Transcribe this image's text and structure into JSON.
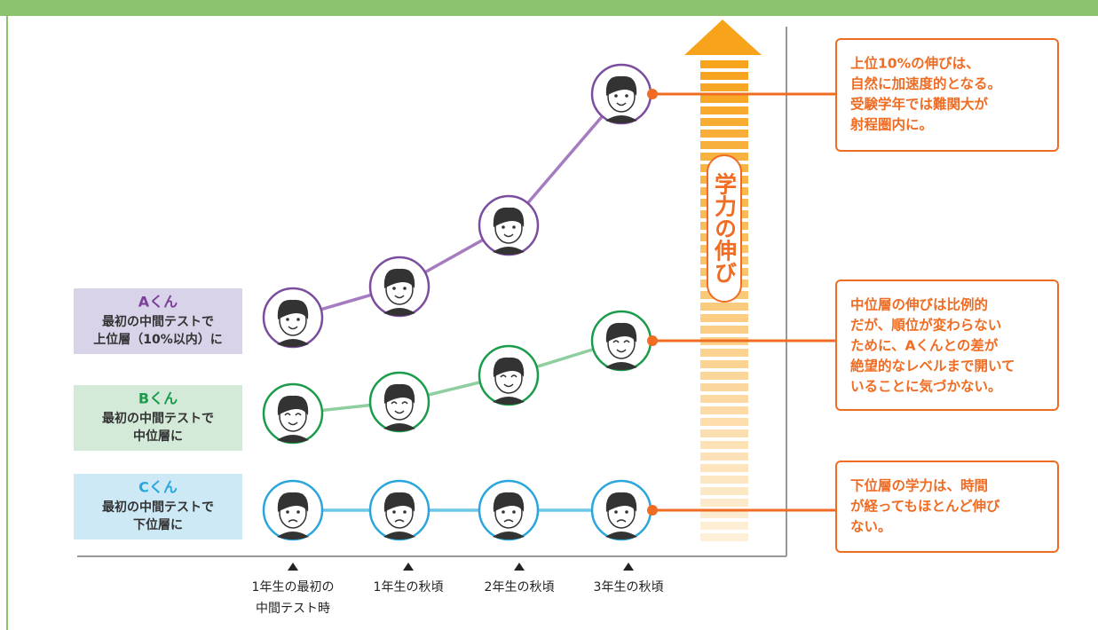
{
  "students": [
    {
      "name": "Aくん",
      "lines": [
        "最初の中間テストで",
        "上位層（10%以内）に"
      ]
    },
    {
      "name": "Bくん",
      "lines": [
        "最初の中間テストで",
        "中位層に"
      ]
    },
    {
      "name": "Cくん",
      "lines": [
        "最初の中間テストで",
        "下位層に"
      ]
    }
  ],
  "timepoints": [
    [
      "1年生の最初の",
      "中間テスト時"
    ],
    [
      "1年生の秋頃"
    ],
    [
      "2年生の秋頃"
    ],
    [
      "3年生の秋頃"
    ]
  ],
  "arrow_label": "学力の伸び",
  "callouts": [
    [
      "上位10%の伸びは、",
      "自然に加速度的となる。",
      "受験学年では難関大が",
      "射程圏内に。"
    ],
    [
      "中位層の伸びは比例的",
      "だが、順位が変わらない",
      "ために、Aくんとの差が",
      "絶望的なレベルまで開いて",
      "いることに気づかない。"
    ],
    [
      "下位層の学力は、時間",
      "が経ってもほとんど伸び",
      "ない。"
    ]
  ]
}
